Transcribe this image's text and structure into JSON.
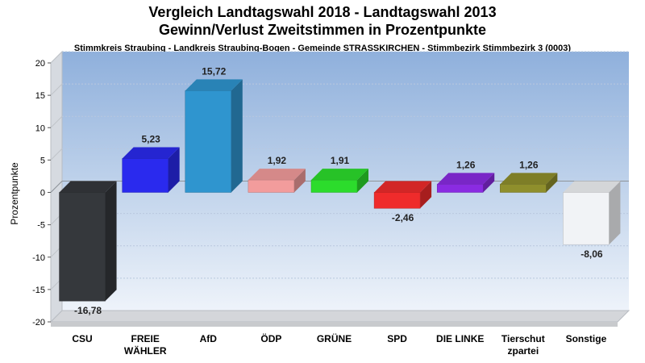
{
  "chart_data": {
    "type": "bar",
    "title_line1": "Vergleich Landtagswahl 2018 - Landtagswahl 2013",
    "title_line2": "Gewinn/Verlust Zweitstimmen in Prozentpunkte",
    "subtitle": "Stimmkreis Straubing - Landkreis Straubing-Bogen - Gemeinde STRASSKIRCHEN - Stimmbezirk Stimmbezirk 3 (0003)",
    "ylabel": "Prozentpunkte",
    "ylim": [
      -20,
      20
    ],
    "yticks": [
      "20",
      "15",
      "10",
      "5",
      "0",
      "-5",
      "-10",
      "-15",
      "-20"
    ],
    "grid": true,
    "categories": [
      [
        "CSU"
      ],
      [
        "FREIE",
        "WÄHLER"
      ],
      [
        "AfD"
      ],
      [
        "ÖDP"
      ],
      [
        "GRÜNE"
      ],
      [
        "SPD"
      ],
      [
        "DIE LINKE"
      ],
      [
        "Tierschut",
        "zpartei"
      ],
      [
        "Sonstige"
      ]
    ],
    "values": [
      -16.78,
      5.23,
      15.72,
      1.92,
      1.91,
      -2.46,
      1.26,
      1.26,
      -8.06
    ],
    "value_labels": [
      "-16,78",
      "5,23",
      "15,72",
      "1,92",
      "1,91",
      "-2,46",
      "1,26",
      "1,26",
      "-8,06"
    ],
    "colors": [
      "#35383c",
      "#2a2aee",
      "#2f95cf",
      "#f29c9c",
      "#2cdc2c",
      "#ef2b2b",
      "#8a2be2",
      "#8f8f2c",
      "#f1f3f6"
    ]
  }
}
